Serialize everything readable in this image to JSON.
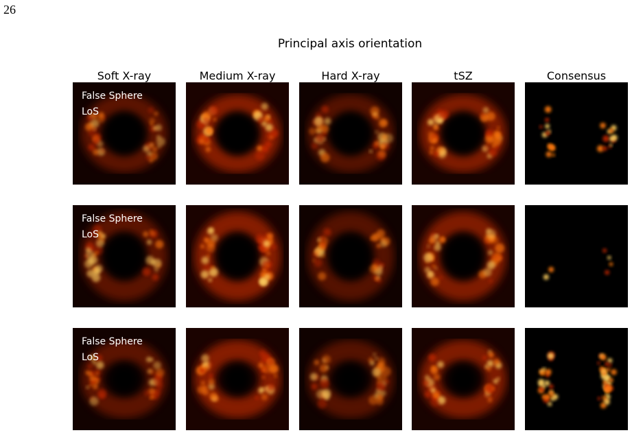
{
  "page_number": "26",
  "figure": {
    "title": "Principal axis orientation",
    "columns": [
      "Soft X-ray",
      "Medium X-ray",
      "Hard X-ray",
      "tSZ",
      "Consensus"
    ],
    "rows": [
      {
        "annotation": [
          "False Sphere",
          "LoS"
        ]
      },
      {
        "annotation": [
          "False Sphere",
          "LoS"
        ]
      },
      {
        "annotation": [
          "False Sphere",
          "LoS"
        ]
      }
    ]
  }
}
